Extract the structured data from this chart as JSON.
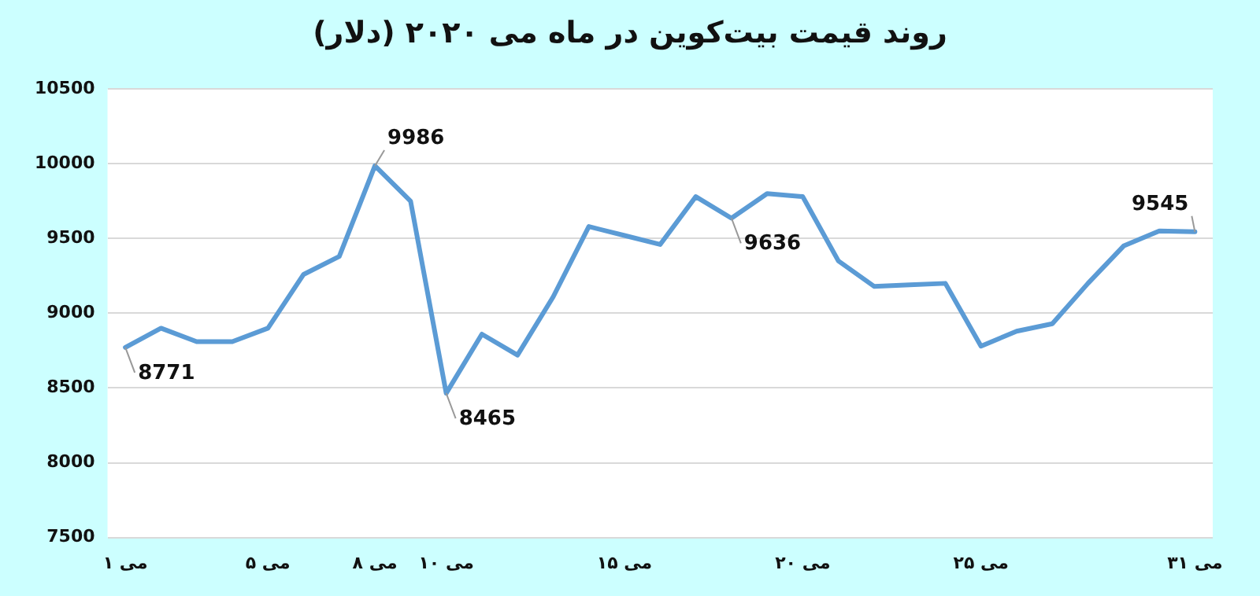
{
  "chart_data": {
    "type": "line",
    "title": "روند قیمت بیت‌کوین در ماه می ۲۰۲۰ (دلار)",
    "categories": [
      "۱ می",
      null,
      null,
      null,
      "۵ می",
      null,
      null,
      "۸ می",
      null,
      "۱۰ می",
      null,
      null,
      null,
      null,
      "۱۵ می",
      null,
      null,
      null,
      null,
      "۲۰ می",
      null,
      null,
      null,
      null,
      "۲۵ می",
      null,
      null,
      null,
      null,
      null,
      "۳۱ می"
    ],
    "series": [
      {
        "color": "#5b9bd5",
        "values": [
          8771,
          8900,
          8810,
          8810,
          8900,
          9260,
          9380,
          9986,
          9750,
          8465,
          8860,
          8720,
          9110,
          9580,
          9520,
          9460,
          9780,
          9636,
          9800,
          9780,
          9350,
          9180,
          9190,
          9200,
          8780,
          8880,
          8930,
          9200,
          9450,
          9550,
          9545
        ],
        "value_labels": [
          "8771",
          null,
          null,
          null,
          null,
          null,
          null,
          "9986",
          null,
          "8465",
          null,
          null,
          null,
          null,
          null,
          null,
          null,
          "9636",
          null,
          null,
          null,
          null,
          null,
          null,
          null,
          null,
          null,
          null,
          null,
          null,
          "9545"
        ]
      }
    ],
    "ylim": [
      7500,
      10500
    ],
    "yticks": [
      7500,
      8000,
      8500,
      9000,
      9500,
      10000,
      10500
    ],
    "grid": "y",
    "marker": "none",
    "line_style": "solid"
  }
}
